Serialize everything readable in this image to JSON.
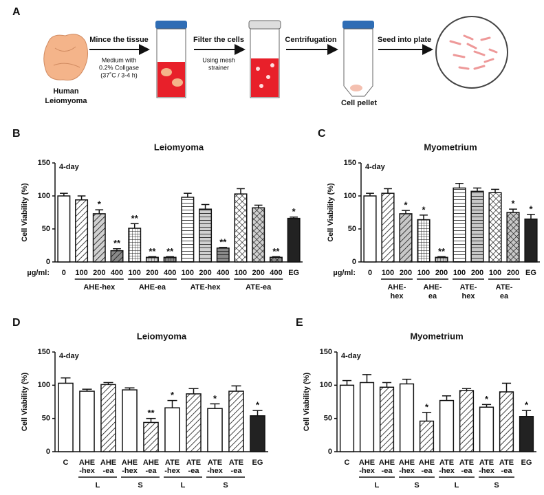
{
  "panel_a": {
    "label": "A",
    "source": [
      "Human",
      "Leiomyoma"
    ],
    "steps": [
      {
        "label": "Mince the tissue",
        "note": [
          "Medium with",
          "0.2% Collgase",
          "(37˚C / 3-4 h)"
        ]
      },
      {
        "label": "Filter the cells",
        "note": [
          "Using mesh",
          "strainer"
        ]
      },
      {
        "label": "Centrifugation"
      },
      {
        "label": "Seed into plate"
      }
    ],
    "pellet": "Cell pellet"
  },
  "chart_data": [
    {
      "type": "bar",
      "panel": "B",
      "title": "Leiomyoma",
      "annotation": "4-day",
      "ylabel": "Cell Viability (%)",
      "xprefix": "µg/ml:",
      "categories": [
        "0",
        "100",
        "200",
        "400",
        "100",
        "200",
        "400",
        "100",
        "200",
        "400",
        "100",
        "200",
        "400",
        "EG"
      ],
      "group": [
        null,
        "AHE-hex",
        "AHE-hex",
        "AHE-hex",
        "AHE-ea",
        "AHE-ea",
        "AHE-ea",
        "ATE-hex",
        "ATE-hex",
        "ATE-hex",
        "ATE-ea",
        "ATE-ea",
        "ATE-ea",
        null
      ],
      "values": [
        100,
        94,
        73,
        17,
        51,
        7,
        7,
        98,
        80,
        21,
        103,
        82,
        7,
        66
      ],
      "errors": [
        4,
        6,
        6,
        3,
        7,
        1,
        1,
        6,
        7,
        1,
        8,
        4,
        1,
        2
      ],
      "significance": [
        null,
        null,
        "*",
        "**",
        "**",
        "**",
        "**",
        null,
        null,
        "**",
        null,
        null,
        "**",
        "*"
      ],
      "colors": [
        "#ffffff",
        "#ffffff",
        "#d0d0d0",
        "#8a8a8a",
        "#ffffff",
        "#d0d0d0",
        "#8a8a8a",
        "#ffffff",
        "#d0d0d0",
        "#8a8a8a",
        "#ffffff",
        "#d0d0d0",
        "#8a8a8a",
        "#222222"
      ],
      "patterns": [
        null,
        "diagonal",
        "diagonal",
        "diagonal",
        "grid",
        "grid",
        "grid",
        "horizontal",
        "horizontal",
        "horizontal",
        "crosshatch",
        "crosshatch",
        "crosshatch",
        null
      ],
      "ylim": [
        0,
        150
      ],
      "yticks": [
        0,
        50,
        100,
        150
      ]
    },
    {
      "type": "bar",
      "panel": "C",
      "title": "Myometrium",
      "annotation": "4-day",
      "ylabel": "Cell Viability (%)",
      "xprefix": "µg/ml:",
      "categories": [
        "0",
        "100",
        "200",
        "100",
        "200",
        "100",
        "200",
        "100",
        "200",
        "EG"
      ],
      "group": [
        null,
        [
          "AHE-",
          "hex"
        ],
        [
          "AHE-",
          "hex"
        ],
        [
          "AHE-",
          "ea"
        ],
        [
          "AHE-",
          "ea"
        ],
        [
          "ATE-",
          "hex"
        ],
        [
          "ATE-",
          "hex"
        ],
        [
          "ATE-",
          "ea"
        ],
        [
          "ATE-",
          "ea"
        ],
        null
      ],
      "values": [
        100,
        104,
        73,
        64,
        7,
        112,
        107,
        105,
        75,
        65
      ],
      "errors": [
        4,
        7,
        5,
        7,
        1,
        7,
        5,
        5,
        5,
        7
      ],
      "significance": [
        null,
        null,
        "*",
        "*",
        "**",
        null,
        null,
        null,
        "*",
        "*"
      ],
      "colors": [
        "#ffffff",
        "#ffffff",
        "#c8c8c8",
        "#ffffff",
        "#c8c8c8",
        "#ffffff",
        "#c8c8c8",
        "#ffffff",
        "#c8c8c8",
        "#222222"
      ],
      "patterns": [
        null,
        "diagonal",
        "diagonal",
        "grid",
        "grid",
        "horizontal",
        "horizontal",
        "crosshatch",
        "crosshatch",
        null
      ],
      "ylim": [
        0,
        150
      ],
      "yticks": [
        0,
        50,
        100,
        150
      ]
    },
    {
      "type": "bar",
      "panel": "D",
      "title": "Leiomyoma",
      "annotation": "4-day",
      "ylabel": "Cell Viability (%)",
      "categories": [
        "C",
        [
          "AHE",
          "-hex"
        ],
        [
          "AHE",
          "-ea"
        ],
        [
          "AHE",
          "-hex"
        ],
        [
          "AHE",
          "-ea"
        ],
        [
          "ATE",
          "-hex"
        ],
        [
          "ATE",
          "-ea"
        ],
        [
          "ATE",
          "-hex"
        ],
        [
          "ATE",
          "-ea"
        ],
        "EG"
      ],
      "group": [
        null,
        "L",
        "L",
        "S",
        "S",
        "L",
        "L",
        "S",
        "S",
        null
      ],
      "values": [
        103,
        91,
        101,
        93,
        44,
        66,
        87,
        65,
        91,
        54
      ],
      "errors": [
        8,
        3,
        3,
        3,
        6,
        11,
        8,
        7,
        8,
        8
      ],
      "significance": [
        null,
        null,
        null,
        null,
        "**",
        "*",
        null,
        "*",
        null,
        "*"
      ],
      "colors": [
        "#ffffff",
        "#ffffff",
        "#ffffff",
        "#ffffff",
        "#ffffff",
        "#ffffff",
        "#ffffff",
        "#ffffff",
        "#ffffff",
        "#222222"
      ],
      "patterns": [
        null,
        null,
        "diagonal",
        null,
        "diagonal",
        null,
        "diagonal",
        null,
        "diagonal",
        null
      ],
      "ylim": [
        0,
        150
      ],
      "yticks": [
        0,
        50,
        100,
        150
      ]
    },
    {
      "type": "bar",
      "panel": "E",
      "title": "Myometrium",
      "annotation": "4-day",
      "ylabel": "Cell Viability (%)",
      "categories": [
        "C",
        [
          "AHE",
          "-hex"
        ],
        [
          "AHE",
          "-ea"
        ],
        [
          "AHE",
          "-hex"
        ],
        [
          "AHE",
          "-ea"
        ],
        [
          "ATE",
          "-hex"
        ],
        [
          "ATE",
          "-ea"
        ],
        [
          "ATE",
          "-hex"
        ],
        [
          "ATE",
          "-ea"
        ],
        "EG"
      ],
      "group": [
        null,
        "L",
        "L",
        "S",
        "S",
        "L",
        "L",
        "S",
        "S",
        null
      ],
      "values": [
        100,
        104,
        97,
        102,
        46,
        77,
        92,
        67,
        90,
        53
      ],
      "errors": [
        7,
        12,
        7,
        7,
        13,
        7,
        3,
        4,
        13,
        9
      ],
      "significance": [
        null,
        null,
        null,
        null,
        "*",
        null,
        null,
        "*",
        null,
        "*"
      ],
      "colors": [
        "#ffffff",
        "#ffffff",
        "#ffffff",
        "#ffffff",
        "#ffffff",
        "#ffffff",
        "#ffffff",
        "#ffffff",
        "#ffffff",
        "#222222"
      ],
      "patterns": [
        null,
        null,
        "diagonal",
        null,
        "diagonal",
        null,
        "diagonal",
        null,
        "diagonal",
        null
      ],
      "ylim": [
        0,
        150
      ],
      "yticks": [
        0,
        50,
        100,
        150
      ]
    }
  ]
}
